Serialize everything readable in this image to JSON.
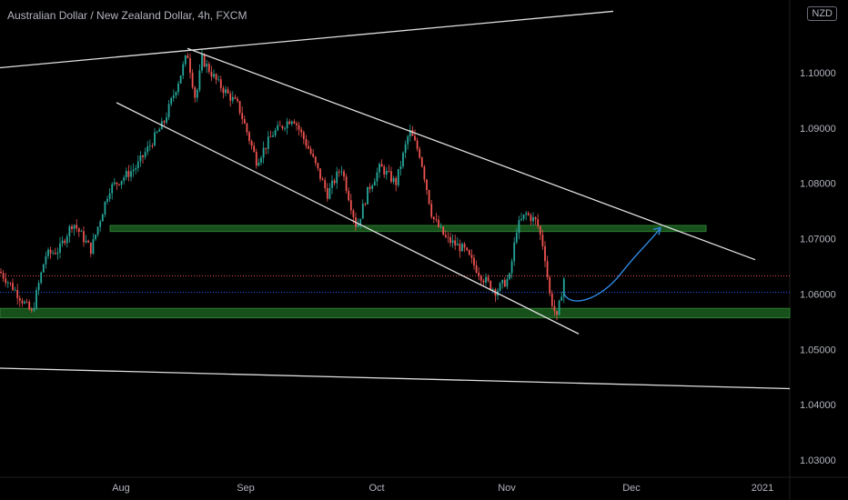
{
  "header": {
    "title": "Australian Dollar / New Zealand Dollar, 4h, FXCM",
    "currency_badge": "NZD"
  },
  "chart_data": {
    "type": "candlestick",
    "title": "Australian Dollar / New Zealand Dollar, 4h, FXCM",
    "y_axis": {
      "range": [
        1.025,
        1.115
      ],
      "ticks": [
        "1.10000",
        "1.09000",
        "1.08000",
        "1.07000",
        "1.06000",
        "1.05000",
        "1.04000",
        "1.03000"
      ],
      "tick_values": [
        1.1,
        1.09,
        1.08,
        1.07,
        1.06,
        1.05,
        1.04,
        1.03
      ],
      "position": "right"
    },
    "x_axis": {
      "ticks": [
        "Aug",
        "Sep",
        "Oct",
        "Nov",
        "Dec",
        "2021"
      ]
    },
    "price_path": [
      [
        0,
        1.064
      ],
      [
        15,
        1.061
      ],
      [
        35,
        1.0565
      ],
      [
        50,
        1.067
      ],
      [
        65,
        1.068
      ],
      [
        80,
        1.073
      ],
      [
        100,
        1.068
      ],
      [
        120,
        1.079
      ],
      [
        150,
        1.083
      ],
      [
        180,
        1.091
      ],
      [
        195,
        1.098
      ],
      [
        206,
        1.1035
      ],
      [
        215,
        1.095
      ],
      [
        222,
        1.1025
      ],
      [
        240,
        1.098
      ],
      [
        262,
        1.094
      ],
      [
        282,
        1.084
      ],
      [
        300,
        1.089
      ],
      [
        322,
        1.092
      ],
      [
        340,
        1.086
      ],
      [
        360,
        1.078
      ],
      [
        375,
        1.083
      ],
      [
        392,
        1.072
      ],
      [
        405,
        1.079
      ],
      [
        418,
        1.083
      ],
      [
        435,
        1.08
      ],
      [
        450,
        1.0895
      ],
      [
        462,
        1.085
      ],
      [
        475,
        1.074
      ],
      [
        490,
        1.07
      ],
      [
        510,
        1.068
      ],
      [
        530,
        1.063
      ],
      [
        545,
        1.0605
      ],
      [
        560,
        1.063
      ],
      [
        568,
        1.072
      ],
      [
        578,
        1.0745
      ],
      [
        590,
        1.073
      ],
      [
        598,
        1.068
      ],
      [
        604,
        1.06
      ],
      [
        612,
        1.0555
      ],
      [
        620,
        1.063
      ]
    ],
    "levels": {
      "red_dotted": 1.0633,
      "blue_dotted": 1.0603
    },
    "support_zones": [
      {
        "from": 1.0713,
        "to": 1.0724,
        "color": "#1b5e20"
      },
      {
        "from": 1.0557,
        "to": 1.0574,
        "color": "#1b5e20"
      }
    ],
    "trendlines": [
      {
        "name": "outer channel top",
        "from": [
          0,
          1.1009
        ],
        "to": [
          674,
          1.1111
        ]
      },
      {
        "name": "outer channel bottom",
        "from": [
          0,
          1.0466
        ],
        "to": [
          868,
          1.0429
        ]
      },
      {
        "name": "descending channel top",
        "from": [
          206,
          1.1044
        ],
        "to": [
          830,
          1.0662
        ]
      },
      {
        "name": "descending channel bottom",
        "from": [
          128,
          1.0946
        ],
        "to": [
          636,
          1.0528
        ]
      }
    ],
    "projection": {
      "color": "#2e86de",
      "from": [
        620,
        1.06
      ],
      "to": [
        726,
        1.072
      ]
    },
    "colors": {
      "up": "#26a69a",
      "down": "#ef5350",
      "background": "#000000"
    }
  }
}
